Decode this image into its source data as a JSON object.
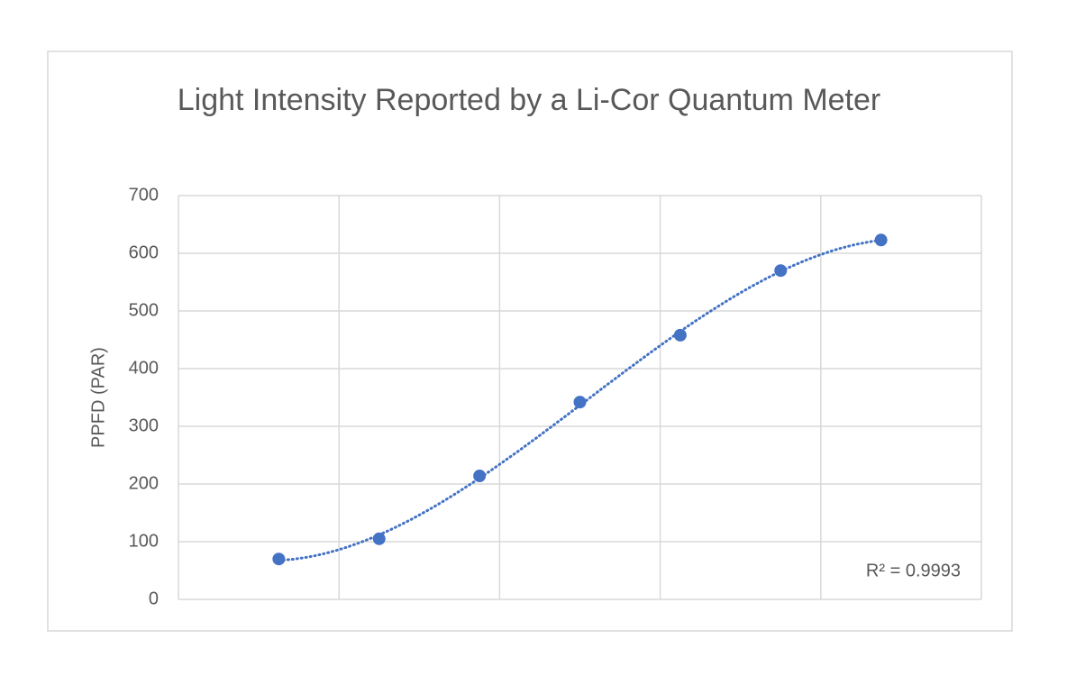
{
  "chart_data": {
    "type": "scatter",
    "title": "Light Intensity Reported by a Li-Cor Quantum Meter",
    "y_label": "PPFD (PAR)",
    "x": [
      1,
      2,
      3,
      4,
      5,
      6,
      7
    ],
    "series": [
      {
        "name": "PPFD",
        "color": "#4472c4",
        "values": [
          70,
          105,
          214,
          342,
          458,
          570,
          623
        ]
      }
    ],
    "xlim": [
      0,
      8
    ],
    "xticks": [
      0,
      1.6,
      3.2,
      4.8,
      6.4,
      8
    ],
    "ylim": [
      0,
      700
    ],
    "yticks": [
      0,
      100,
      200,
      300,
      400,
      500,
      600,
      700
    ],
    "grid": true,
    "trendline": {
      "kind": "polynomial",
      "order": 3,
      "annotation": "R² = 0.9993"
    }
  }
}
